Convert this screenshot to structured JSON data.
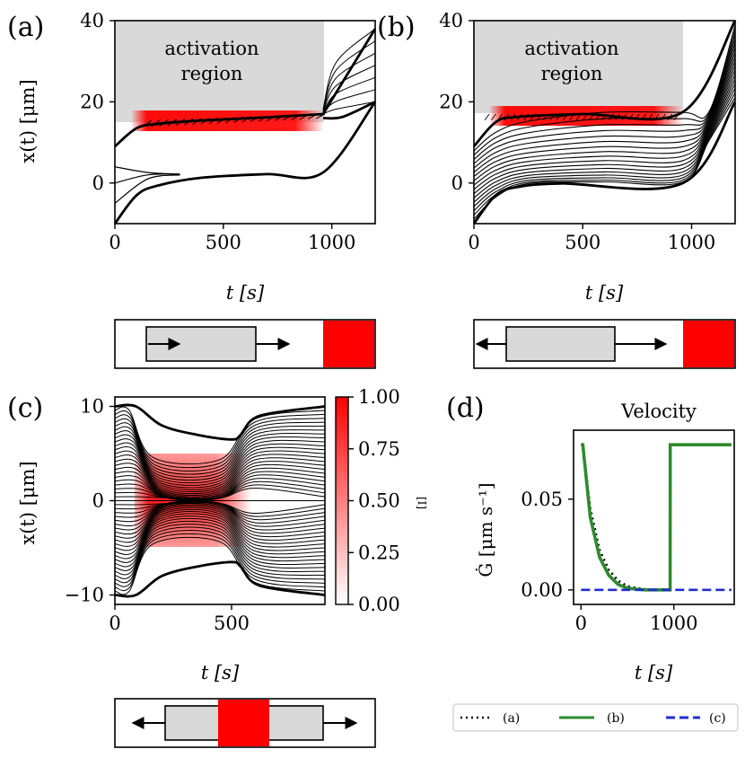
{
  "panels": {
    "a": {
      "label": "(a)",
      "region_label_1": "activation",
      "region_label_2": "region"
    },
    "b": {
      "label": "(b)",
      "region_label_1": "activation",
      "region_label_2": "region"
    },
    "c": {
      "label": "(c)"
    },
    "d": {
      "label": "(d)",
      "title": "Velocity"
    }
  },
  "axes": {
    "ylabel_x_of_t": "x(t) [μm]",
    "xlabel_t": "t [s]",
    "ylabel_velocity": "Ġ [μm s⁻¹]",
    "colorbar_label": "[I]"
  },
  "colors": {
    "activation_red": "#ff0000",
    "region_gray": "#d9d9d9",
    "series_b_green": "#2e8b2e",
    "series_c_blue": "#1f2fd0"
  },
  "chart_data": [
    {
      "id": "a",
      "type": "line",
      "xlim": [
        0,
        1200
      ],
      "ylim": [
        -10,
        40
      ],
      "xticks": [
        0,
        500,
        1000
      ],
      "yticks": [
        0,
        20,
        40
      ],
      "activation_region": {
        "t": [
          0,
          960
        ],
        "x_min": 13.5,
        "x_max": 40
      },
      "series": [
        {
          "points": [
            [
              0,
              9
            ],
            [
              100,
              13.5
            ],
            [
              200,
              14.6
            ],
            [
              400,
              15.4
            ],
            [
              700,
              16.2
            ],
            [
              960,
              17
            ]
          ],
          "bold": true
        },
        {
          "points": [
            [
              0,
              -10
            ],
            [
              100,
              -3
            ],
            [
              200,
              -0.6
            ],
            [
              400,
              1.3
            ],
            [
              700,
              2.2
            ],
            [
              960,
              2.6
            ],
            [
              1200,
              20
            ]
          ],
          "bold": true
        },
        {
          "points": [
            [
              960,
              17
            ],
            [
              1200,
              38
            ]
          ],
          "bold": true
        },
        {
          "points": [
            [
              960,
              16
            ],
            [
              1050,
              16.3
            ],
            [
              1200,
              20
            ]
          ],
          "bold": true
        },
        {
          "points": [
            [
              0,
              4
            ],
            [
              150,
              2.6
            ],
            [
              300,
              2.2
            ]
          ]
        },
        {
          "points": [
            [
              0,
              0
            ],
            [
              150,
              2
            ],
            [
              300,
              2.2
            ]
          ]
        },
        {
          "points": [
            [
              0,
              -5
            ],
            [
              150,
              1
            ],
            [
              300,
              2
            ]
          ]
        }
      ]
    },
    {
      "id": "b",
      "type": "line",
      "xlim": [
        0,
        1200
      ],
      "ylim": [
        -10,
        40
      ],
      "xticks": [
        0,
        500,
        1000
      ],
      "yticks": [
        0,
        20,
        40
      ],
      "activation_region": {
        "t": [
          0,
          960
        ],
        "x_min": 15,
        "x_max": 40
      },
      "series": [
        {
          "points": [
            [
              0,
              -10
            ],
            [
              100,
              -3
            ],
            [
              200,
              -1
            ],
            [
              400,
              -0.1
            ],
            [
              960,
              0
            ],
            [
              1200,
              20
            ]
          ],
          "bold": true
        },
        {
          "points": [
            [
              0,
              9
            ],
            [
              100,
              15
            ],
            [
              200,
              16.3
            ],
            [
              500,
              17
            ],
            [
              960,
              17.5
            ],
            [
              1200,
              40
            ]
          ],
          "bold": true
        }
      ]
    },
    {
      "id": "c",
      "type": "line",
      "xlim": [
        0,
        900
      ],
      "ylim": [
        -11,
        11
      ],
      "xticks": [
        0,
        500
      ],
      "yticks": [
        -10,
        0,
        10
      ],
      "activation_region": {
        "t": [
          100,
          600
        ],
        "x_min": -5,
        "x_max": 5
      },
      "colorbar": {
        "min": 0,
        "max": 1,
        "ticks": [
          0.0,
          0.25,
          0.5,
          0.75,
          1.0
        ]
      },
      "series": [
        {
          "points": [
            [
              0,
              10
            ],
            [
              90,
              10
            ],
            [
              200,
              8
            ],
            [
              350,
              7
            ],
            [
              500,
              6.5
            ],
            [
              540,
              7
            ],
            [
              620,
              9
            ],
            [
              900,
              10
            ]
          ],
          "bold": true
        },
        {
          "points": [
            [
              0,
              -10
            ],
            [
              90,
              -10
            ],
            [
              200,
              -8
            ],
            [
              350,
              -7
            ],
            [
              500,
              -6.5
            ],
            [
              540,
              -7
            ],
            [
              620,
              -9
            ],
            [
              900,
              -10
            ]
          ],
          "bold": true
        }
      ]
    },
    {
      "id": "d",
      "type": "line",
      "title": "Velocity",
      "xlim": [
        -80,
        1650
      ],
      "ylim": [
        -0.008,
        0.088
      ],
      "xticks": [
        0,
        1000
      ],
      "yticks": [
        0.0,
        0.05
      ],
      "series": [
        {
          "name": "(a)",
          "style": "dotted",
          "color": "#000000",
          "x": [
            0,
            20,
            100,
            200,
            300,
            400,
            500,
            600,
            700,
            800
          ],
          "y": [
            0.08,
            0.08,
            0.045,
            0.022,
            0.011,
            0.005,
            0.002,
            0.001,
            0.0003,
            0
          ]
        },
        {
          "name": "(b)",
          "style": "solid",
          "color": "#2e8b2e",
          "x": [
            0,
            20,
            100,
            200,
            300,
            400,
            500,
            600,
            700,
            900,
            960,
            961,
            1620
          ],
          "y": [
            0.08,
            0.08,
            0.04,
            0.018,
            0.008,
            0.003,
            0.001,
            0.0003,
            0,
            0,
            0,
            0.08,
            0.08
          ]
        },
        {
          "name": "(c)",
          "style": "dashed",
          "color": "#1f2fd0",
          "x": [
            0,
            1620
          ],
          "y": [
            0,
            0
          ]
        }
      ]
    }
  ]
}
